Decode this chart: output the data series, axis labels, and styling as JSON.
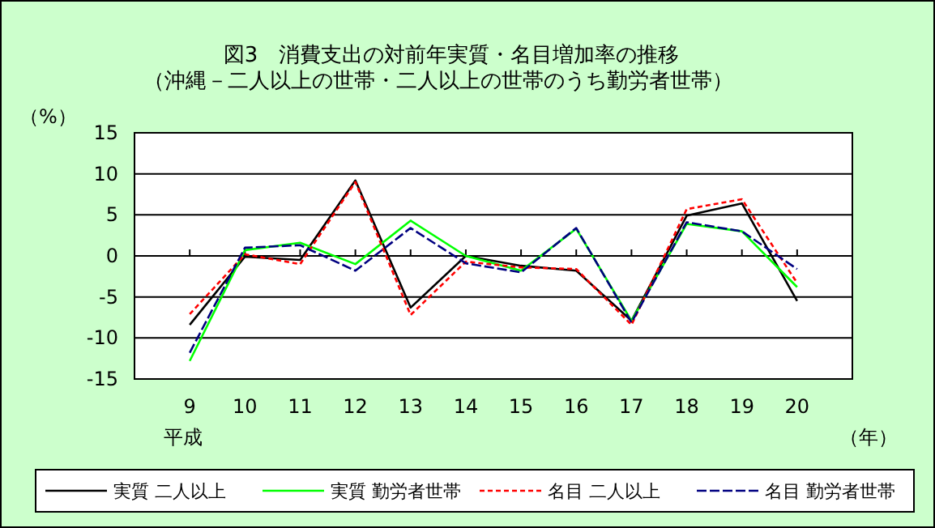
{
  "chart_data": {
    "type": "line",
    "title": "図3　消費支出の対前年実質・名目増加率の推移",
    "subtitle": "（沖縄－二人以上の世帯・二人以上の世帯のうち勤労者世帯）",
    "ylabel": "（%）",
    "xlabel": "（年）",
    "annotations": [
      "平成"
    ],
    "categories": [
      "9",
      "10",
      "11",
      "12",
      "13",
      "14",
      "15",
      "16",
      "17",
      "18",
      "19",
      "20"
    ],
    "ylim": [
      -15,
      15
    ],
    "yticks": [
      -15,
      -10,
      -5,
      0,
      5,
      10,
      15
    ],
    "grid": "y",
    "legend": "bottom",
    "marker": "none",
    "series": [
      {
        "name": "実質 二人以上",
        "color": "#000000",
        "line_style": "solid",
        "values": [
          -8.4,
          -0.1,
          -0.5,
          9.2,
          -6.3,
          0,
          -1.2,
          -1.8,
          -7.9,
          4.9,
          6.4,
          -5.5
        ]
      },
      {
        "name": "実質 勤労者世帯",
        "color": "#00ff00",
        "line_style": "solid",
        "values": [
          -12.8,
          0.7,
          1.6,
          -1.0,
          4.3,
          0,
          -1.8,
          3.3,
          -7.9,
          3.9,
          3.0,
          -3.8
        ]
      },
      {
        "name": "名目 二人以上",
        "color": "#ff0000",
        "line_style": "dotted",
        "values": [
          -7.1,
          0.2,
          -1.0,
          9.0,
          -7.2,
          -0.7,
          -1.4,
          -1.6,
          -8.4,
          5.7,
          6.9,
          -3.3
        ]
      },
      {
        "name": "名目 勤労者世帯",
        "color": "#000080",
        "line_style": "dashed",
        "values": [
          -11.8,
          1.0,
          1.3,
          -1.8,
          3.4,
          -0.9,
          -2.0,
          3.4,
          -8.1,
          4.1,
          3.0,
          -1.6
        ]
      }
    ]
  }
}
